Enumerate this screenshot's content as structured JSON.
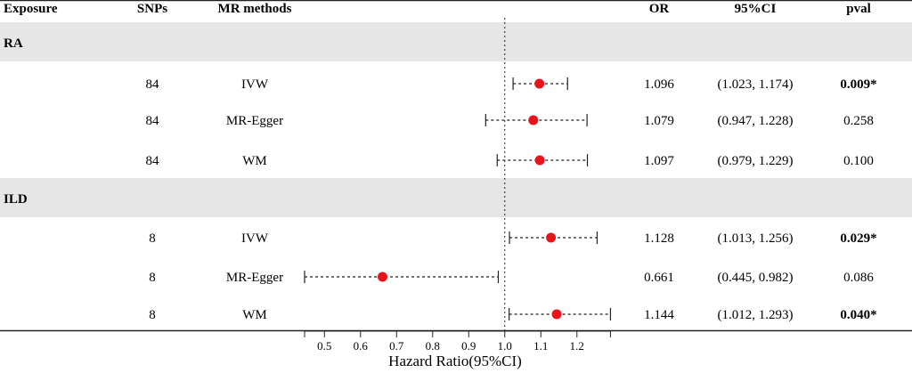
{
  "headers": {
    "exposure": "Exposure",
    "snps": "SNPs",
    "methods": "MR methods",
    "or": "OR",
    "ci": "95%CI",
    "pval": "pval"
  },
  "groups": [
    {
      "name": "RA",
      "rows": [
        {
          "snps": "84",
          "method": "IVW",
          "or_text": "1.096",
          "ci_text": "(1.023, 1.174)",
          "pval_text": "0.009*",
          "significant": true
        },
        {
          "snps": "84",
          "method": "MR-Egger",
          "or_text": "1.079",
          "ci_text": "(0.947, 1.228)",
          "pval_text": "0.258",
          "significant": false
        },
        {
          "snps": "84",
          "method": "WM",
          "or_text": "1.097",
          "ci_text": "(0.979, 1.229)",
          "pval_text": "0.100",
          "significant": false
        }
      ]
    },
    {
      "name": "ILD",
      "rows": [
        {
          "snps": "8",
          "method": "IVW",
          "or_text": "1.128",
          "ci_text": "(1.013, 1.256)",
          "pval_text": "0.029*",
          "significant": true
        },
        {
          "snps": "8",
          "method": "MR-Egger",
          "or_text": "0.661",
          "ci_text": "(0.445, 0.982)",
          "pval_text": "0.086",
          "significant": false
        },
        {
          "snps": "8",
          "method": "WM",
          "or_text": "1.144",
          "ci_text": "(1.012, 1.293)",
          "pval_text": "0.040*",
          "significant": true
        }
      ]
    }
  ],
  "chart_data": {
    "type": "scatter",
    "xlabel": "Hazard Ratio(95%CI)",
    "xlim": [
      0.445,
      1.293
    ],
    "xticks": [
      "0.5",
      "0.6",
      "0.7",
      "0.8",
      "0.9",
      "1.0",
      "1.1",
      "1.2"
    ],
    "reference_line": 1.0,
    "series": [
      {
        "points": [
          {
            "group": "RA",
            "method": "IVW",
            "or": 1.096,
            "lower": 1.023,
            "upper": 1.174
          },
          {
            "group": "RA",
            "method": "MR-Egger",
            "or": 1.079,
            "lower": 0.947,
            "upper": 1.228
          },
          {
            "group": "RA",
            "method": "WM",
            "or": 1.097,
            "lower": 0.979,
            "upper": 1.229
          },
          {
            "group": "ILD",
            "method": "IVW",
            "or": 1.128,
            "lower": 1.013,
            "upper": 1.256
          },
          {
            "group": "ILD",
            "method": "MR-Egger",
            "or": 0.661,
            "lower": 0.445,
            "upper": 0.982
          },
          {
            "group": "ILD",
            "method": "WM",
            "or": 1.144,
            "lower": 1.012,
            "upper": 1.293
          }
        ]
      }
    ],
    "colors": {
      "point": "#e8141a",
      "band": "#e6e6e6",
      "axis": "#222222"
    }
  }
}
